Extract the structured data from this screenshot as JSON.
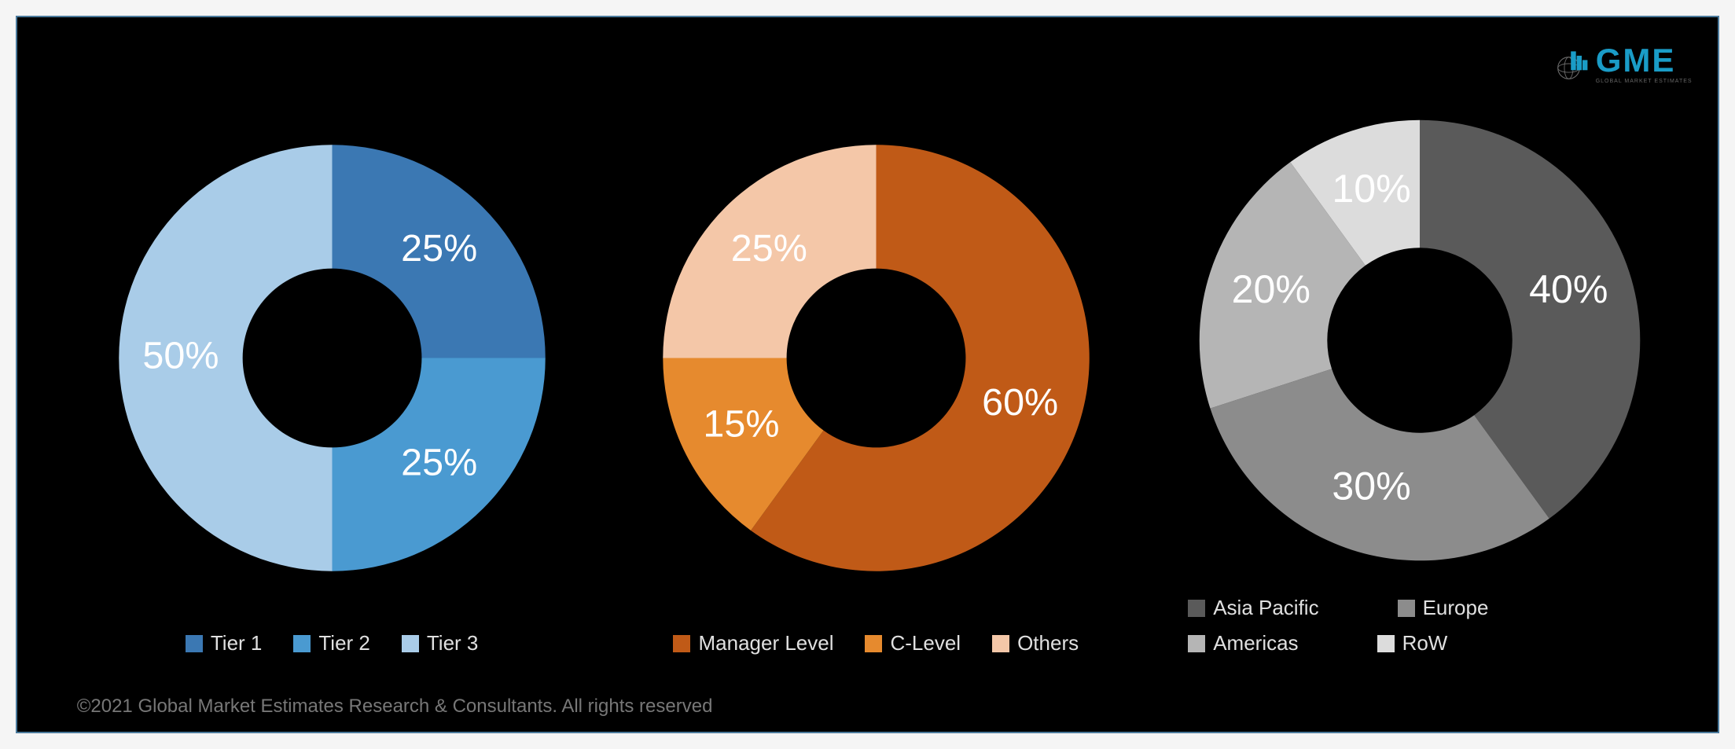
{
  "background_color": "#000000",
  "border_color": "#4a7a9c",
  "logo": {
    "text": "GME",
    "subtext": "GLOBAL MARKET ESTIMATES",
    "text_color": "#1a9cc7"
  },
  "copyright": "©2021 Global Market Estimates Research & Consultants. All rights reserved",
  "charts": [
    {
      "type": "donut",
      "inner_radius_ratio": 0.42,
      "label_fontsize": 34,
      "label_color": "#ffffff",
      "start_at_top": true,
      "slices": [
        {
          "label": "Tier 1",
          "value": 25,
          "display": "25%",
          "color": "#3b78b3"
        },
        {
          "label": "Tier 2",
          "value": 25,
          "display": "25%",
          "color": "#4a9ad1"
        },
        {
          "label": "Tier 3",
          "value": 50,
          "display": "50%",
          "color": "#a9cce8"
        }
      ]
    },
    {
      "type": "donut",
      "inner_radius_ratio": 0.42,
      "label_fontsize": 34,
      "label_color": "#ffffff",
      "start_at_top": true,
      "slices": [
        {
          "label": "Manager Level",
          "value": 60,
          "display": "60%",
          "color": "#c05a17"
        },
        {
          "label": "C-Level",
          "value": 15,
          "display": "15%",
          "color": "#e68a2e"
        },
        {
          "label": "Others",
          "value": 25,
          "display": "25%",
          "color": "#f4c7a8"
        }
      ]
    },
    {
      "type": "donut",
      "inner_radius_ratio": 0.42,
      "label_fontsize": 34,
      "label_color": "#ffffff",
      "start_at_top": true,
      "slices": [
        {
          "label": "Asia Pacific",
          "value": 40,
          "display": "40%",
          "color": "#5a5a5a"
        },
        {
          "label": "Europe",
          "value": 30,
          "display": "30%",
          "color": "#8c8c8c"
        },
        {
          "label": "Americas",
          "value": 20,
          "display": "20%",
          "color": "#b5b5b5"
        },
        {
          "label": "RoW",
          "value": 10,
          "display": "10%",
          "color": "#dcdcdc"
        }
      ]
    }
  ]
}
